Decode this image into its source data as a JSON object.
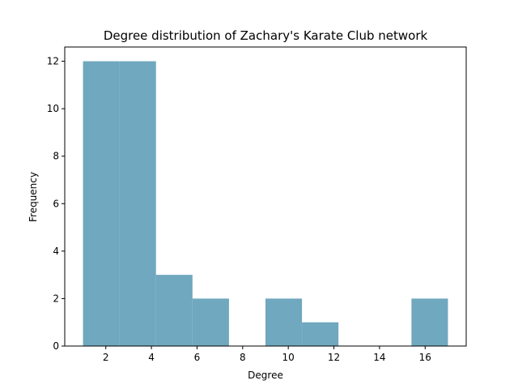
{
  "chart_data": {
    "type": "bar",
    "title": "Degree distribution of Zachary's Karate Club network",
    "xlabel": "Degree",
    "ylabel": "Frequency",
    "bins": [
      {
        "x0": 1.0,
        "x1": 2.6,
        "count": 12
      },
      {
        "x0": 2.6,
        "x1": 4.2,
        "count": 12
      },
      {
        "x0": 4.2,
        "x1": 5.8,
        "count": 3
      },
      {
        "x0": 5.8,
        "x1": 7.4,
        "count": 2
      },
      {
        "x0": 7.4,
        "x1": 9.0,
        "count": 0
      },
      {
        "x0": 9.0,
        "x1": 10.6,
        "count": 2
      },
      {
        "x0": 10.6,
        "x1": 12.2,
        "count": 1
      },
      {
        "x0": 12.2,
        "x1": 13.8,
        "count": 0
      },
      {
        "x0": 13.8,
        "x1": 15.4,
        "count": 0
      },
      {
        "x0": 15.4,
        "x1": 17.0,
        "count": 2
      }
    ],
    "xlim": [
      0.2,
      17.8
    ],
    "ylim": [
      0,
      12.6
    ],
    "xticks": [
      2,
      4,
      6,
      8,
      10,
      12,
      14,
      16
    ],
    "yticks": [
      0,
      2,
      4,
      6,
      8,
      10,
      12
    ],
    "bar_color": "#6fa8bf",
    "grid": false
  }
}
